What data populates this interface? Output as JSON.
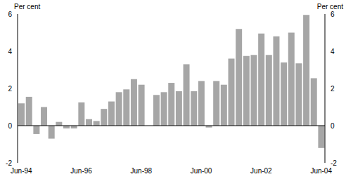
{
  "chart_data": {
    "type": "bar",
    "ylabel": "Per cent",
    "y2label": "Per cent",
    "categories": [
      "Jun-94",
      null,
      null,
      null,
      null,
      null,
      null,
      null,
      "Jun-96",
      null,
      null,
      null,
      null,
      null,
      null,
      null,
      "Jun-98",
      null,
      null,
      null,
      null,
      null,
      null,
      null,
      "Jun-00",
      null,
      null,
      null,
      null,
      null,
      null,
      null,
      "Jun-02",
      null,
      null,
      null,
      null,
      null,
      null,
      null,
      "Jun-04"
    ],
    "values": [
      1.2,
      1.55,
      -0.45,
      1.0,
      -0.7,
      0.2,
      -0.15,
      -0.15,
      1.25,
      0.35,
      0.25,
      0.9,
      1.3,
      1.8,
      1.95,
      2.5,
      2.2,
      0,
      1.65,
      1.8,
      2.3,
      1.85,
      3.3,
      1.85,
      2.4,
      -0.1,
      2.4,
      2.2,
      3.6,
      5.2,
      3.75,
      3.8,
      4.95,
      3.8,
      4.8,
      3.4,
      5.0,
      3.35,
      5.95,
      2.55,
      -1.2
    ],
    "color": "#a6a6a6",
    "ylim": [
      -2,
      6
    ],
    "yticks": [
      -2,
      0,
      2,
      4,
      6
    ],
    "grid": false
  }
}
